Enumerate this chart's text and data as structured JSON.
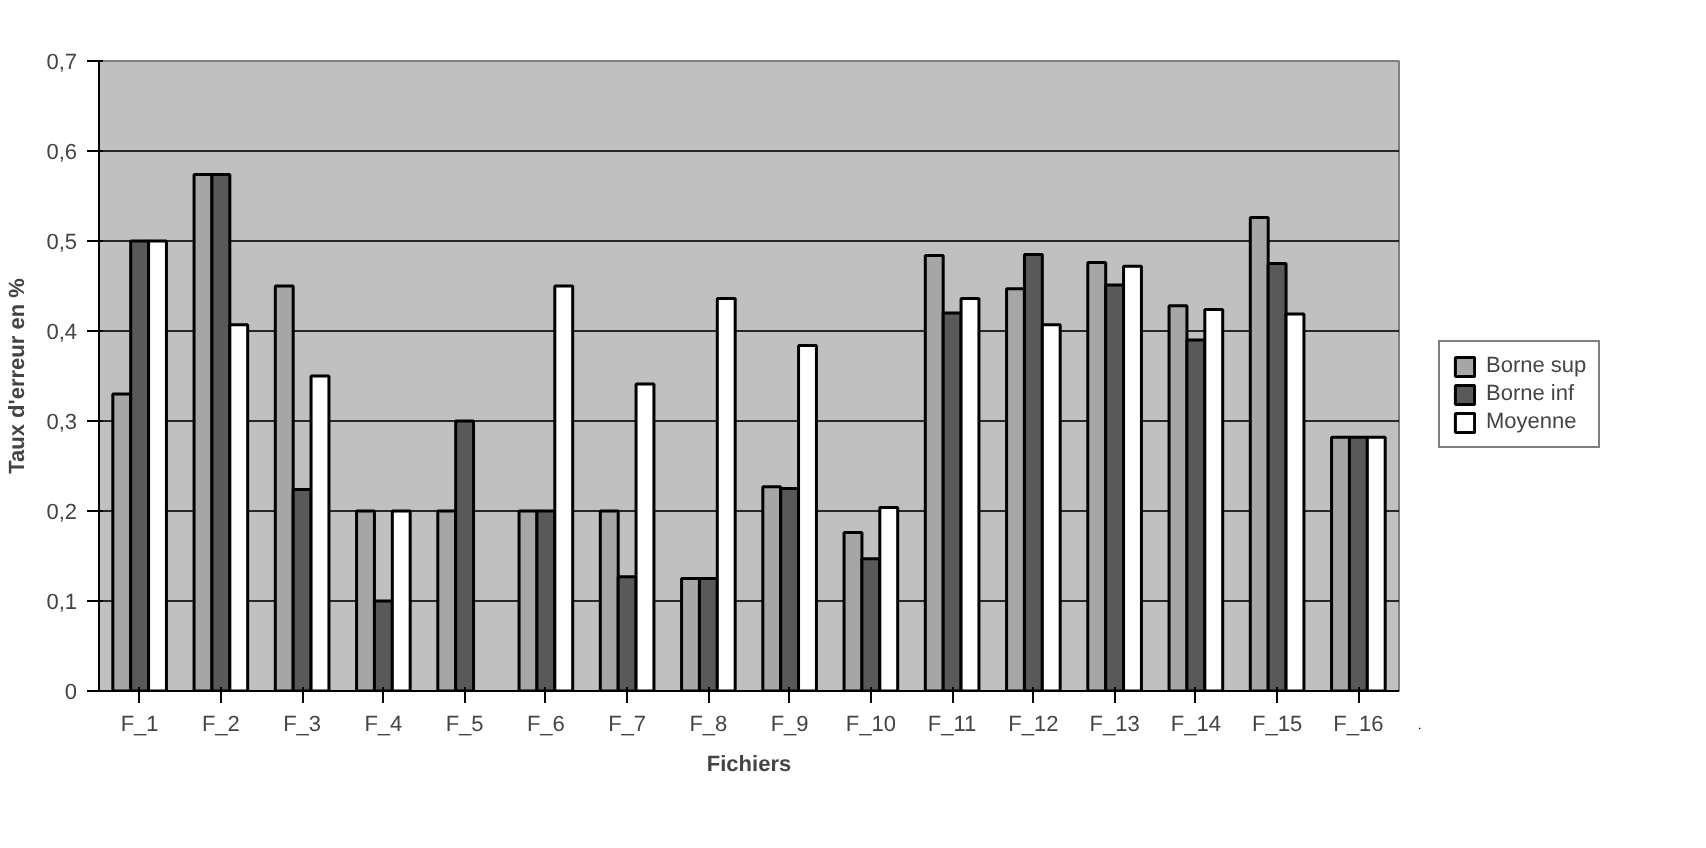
{
  "chart_data": {
    "type": "bar",
    "xlabel": "Fichiers",
    "ylabel": "Taux d'erreur en %",
    "categories": [
      "F_1",
      "F_2",
      "F_3",
      "F_4",
      "F_5",
      "F_6",
      "F_7",
      "F_8",
      "F_9",
      "F_10",
      "F_11",
      "F_12",
      "F_13",
      "F_14",
      "F_15",
      "F_16"
    ],
    "series": [
      {
        "name": "Borne sup",
        "color": "#a6a6a6",
        "values": [
          0.33,
          0.574,
          0.45,
          0.2,
          0.2,
          0.2,
          0.2,
          0.125,
          0.227,
          0.176,
          0.484,
          0.447,
          0.476,
          0.428,
          0.526,
          0.282
        ]
      },
      {
        "name": "Borne inf",
        "color": "#595959",
        "values": [
          0.5,
          0.574,
          0.224,
          0.1,
          0.3,
          0.2,
          0.127,
          0.125,
          0.225,
          0.147,
          0.42,
          0.485,
          0.451,
          0.39,
          0.475,
          0.282
        ]
      },
      {
        "name": "Moyenne",
        "color": "#ffffff",
        "values": [
          0.5,
          0.407,
          0.35,
          0.2,
          null,
          0.45,
          0.341,
          0.436,
          0.384,
          0.204,
          0.436,
          0.407,
          0.472,
          0.424,
          0.419,
          0.282
        ]
      }
    ],
    "ylim": [
      0,
      0.7
    ],
    "yticks": [
      0,
      {
        "value": 0.1,
        "label": "0,1"
      },
      {
        "value": 0.2,
        "label": "0,2"
      },
      {
        "value": 0.3,
        "label": "0,3"
      },
      {
        "value": 0.4,
        "label": "0,4"
      },
      {
        "value": 0.5,
        "label": "0,5"
      },
      {
        "value": 0.6,
        "label": "0,6"
      },
      {
        "value": 0.7,
        "label": "0,7"
      }
    ],
    "grid": "y",
    "legend": "right"
  }
}
